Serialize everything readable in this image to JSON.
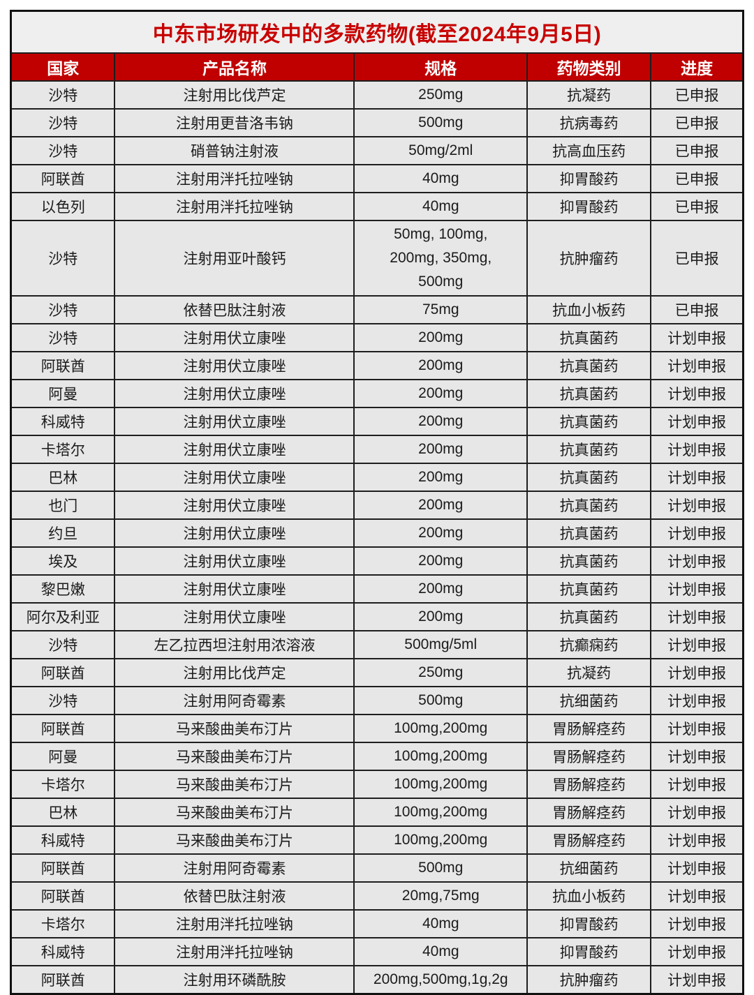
{
  "colors": {
    "header_bg": "#C00000",
    "title_red": "#C80000",
    "cell_bg": "#E7E7E7",
    "grid": "#1E1E1E",
    "text": "#1B1B1B"
  },
  "chart_data": {
    "type": "table",
    "title": "中东市场研发中的多款药物(截至2024年9月5日)",
    "columns": [
      "国家",
      "产品名称",
      "规格",
      "药物类别",
      "进度"
    ],
    "column_widths_pct": [
      14.2,
      32.7,
      23.6,
      16.9,
      12.6
    ],
    "rows": [
      [
        "沙特",
        "注射用比伐芦定",
        "250mg",
        "抗凝药",
        "已申报"
      ],
      [
        "沙特",
        "注射用更昔洛韦钠",
        "500mg",
        "抗病毒药",
        "已申报"
      ],
      [
        "沙特",
        "硝普钠注射液",
        "50mg/2ml",
        "抗高血压药",
        "已申报"
      ],
      [
        "阿联酋",
        "注射用泮托拉唑钠",
        "40mg",
        "抑胃酸药",
        "已申报"
      ],
      [
        "以色列",
        "注射用泮托拉唑钠",
        "40mg",
        "抑胃酸药",
        "已申报"
      ],
      [
        "沙特",
        "注射用亚叶酸钙",
        "50mg, 100mg,\n200mg, 350mg,\n500mg",
        "抗肿瘤药",
        "已申报"
      ],
      [
        "沙特",
        "依替巴肽注射液",
        "75mg",
        "抗血小板药",
        "已申报"
      ],
      [
        "沙特",
        "注射用伏立康唑",
        "200mg",
        "抗真菌药",
        "计划申报"
      ],
      [
        "阿联酋",
        "注射用伏立康唑",
        "200mg",
        "抗真菌药",
        "计划申报"
      ],
      [
        "阿曼",
        "注射用伏立康唑",
        "200mg",
        "抗真菌药",
        "计划申报"
      ],
      [
        "科威特",
        "注射用伏立康唑",
        "200mg",
        "抗真菌药",
        "计划申报"
      ],
      [
        "卡塔尔",
        "注射用伏立康唑",
        "200mg",
        "抗真菌药",
        "计划申报"
      ],
      [
        "巴林",
        "注射用伏立康唑",
        "200mg",
        "抗真菌药",
        "计划申报"
      ],
      [
        "也门",
        "注射用伏立康唑",
        "200mg",
        "抗真菌药",
        "计划申报"
      ],
      [
        "约旦",
        "注射用伏立康唑",
        "200mg",
        "抗真菌药",
        "计划申报"
      ],
      [
        "埃及",
        "注射用伏立康唑",
        "200mg",
        "抗真菌药",
        "计划申报"
      ],
      [
        "黎巴嫩",
        "注射用伏立康唑",
        "200mg",
        "抗真菌药",
        "计划申报"
      ],
      [
        "阿尔及利亚",
        "注射用伏立康唑",
        "200mg",
        "抗真菌药",
        "计划申报"
      ],
      [
        "沙特",
        "左乙拉西坦注射用浓溶液",
        "500mg/5ml",
        "抗癫痫药",
        "计划申报"
      ],
      [
        "阿联酋",
        "注射用比伐芦定",
        "250mg",
        "抗凝药",
        "计划申报"
      ],
      [
        "沙特",
        "注射用阿奇霉素",
        "500mg",
        "抗细菌药",
        "计划申报"
      ],
      [
        "阿联酋",
        "马来酸曲美布汀片",
        "100mg,200mg",
        "胃肠解痉药",
        "计划申报"
      ],
      [
        "阿曼",
        "马来酸曲美布汀片",
        "100mg,200mg",
        "胃肠解痉药",
        "计划申报"
      ],
      [
        "卡塔尔",
        "马来酸曲美布汀片",
        "100mg,200mg",
        "胃肠解痉药",
        "计划申报"
      ],
      [
        "巴林",
        "马来酸曲美布汀片",
        "100mg,200mg",
        "胃肠解痉药",
        "计划申报"
      ],
      [
        "科威特",
        "马来酸曲美布汀片",
        "100mg,200mg",
        "胃肠解痉药",
        "计划申报"
      ],
      [
        "阿联酋",
        "注射用阿奇霉素",
        "500mg",
        "抗细菌药",
        "计划申报"
      ],
      [
        "阿联酋",
        "依替巴肽注射液",
        "20mg,75mg",
        "抗血小板药",
        "计划申报"
      ],
      [
        "卡塔尔",
        "注射用泮托拉唑钠",
        "40mg",
        "抑胃酸药",
        "计划申报"
      ],
      [
        "科威特",
        "注射用泮托拉唑钠",
        "40mg",
        "抑胃酸药",
        "计划申报"
      ],
      [
        "阿联酋",
        "注射用环磷酰胺",
        "200mg,500mg,1g,2g",
        "抗肿瘤药",
        "计划申报"
      ]
    ]
  }
}
